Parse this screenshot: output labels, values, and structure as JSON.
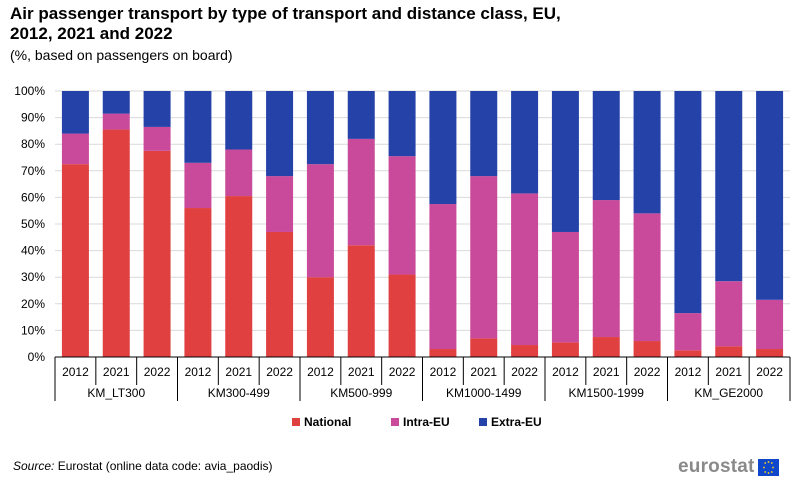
{
  "title_line1": "Air passenger transport by type of transport and distance class, EU,",
  "title_line2": "2012, 2021 and 2022",
  "subtitle": "(%, based on passengers on board)",
  "source_label": "Source:",
  "source_text": " Eurostat (online data code: avia_paodis)",
  "logo_text": "eurostat",
  "chart_data": {
    "type": "bar",
    "stacked": true,
    "title": "Air passenger transport by type of transport and distance class, EU, 2012, 2021 and 2022",
    "ylabel": "%",
    "ylim": [
      0,
      100
    ],
    "yticks": [
      "0%",
      "10%",
      "20%",
      "30%",
      "40%",
      "50%",
      "60%",
      "70%",
      "80%",
      "90%",
      "100%"
    ],
    "groups": [
      "KM_LT300",
      "KM300-499",
      "KM500-999",
      "KM1000-1499",
      "KM1500-1999",
      "KM_GE2000"
    ],
    "years": [
      "2012",
      "2021",
      "2022"
    ],
    "legend_position": "bottom",
    "series": [
      {
        "name": "National",
        "color": "#e04040",
        "values": [
          72.5,
          85.5,
          77.5,
          56,
          60.5,
          47,
          30,
          42,
          31,
          3,
          7,
          4.5,
          5.5,
          7.5,
          6,
          2.5,
          4,
          3
        ]
      },
      {
        "name": "Intra-EU",
        "color": "#c94a9b",
        "values": [
          11.5,
          6,
          9,
          17,
          17.5,
          21,
          42.5,
          40,
          44.5,
          54.5,
          61,
          57,
          41.5,
          51.5,
          48,
          14,
          24.5,
          18.5
        ]
      },
      {
        "name": "Extra-EU",
        "color": "#2542a8",
        "values": [
          16,
          8.5,
          13.5,
          27,
          22,
          32,
          27.5,
          18,
          24.5,
          42.5,
          32,
          38.5,
          53,
          41,
          46,
          83.5,
          71.5,
          78.5
        ]
      }
    ]
  }
}
